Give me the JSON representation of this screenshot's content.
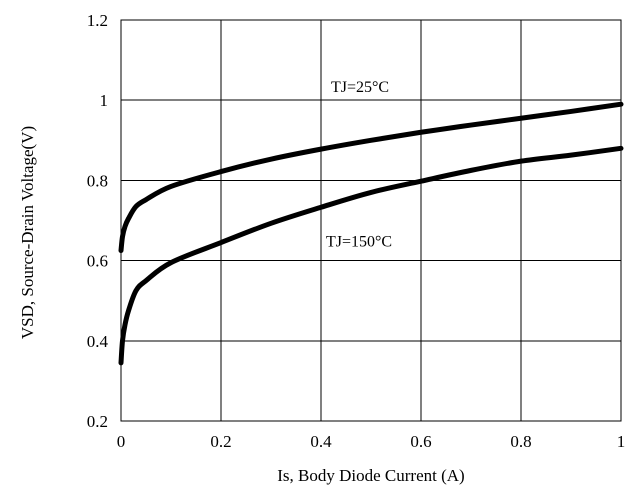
{
  "chart_data": {
    "type": "line",
    "title": "",
    "xlabel": "Is, Body Diode Current (A)",
    "ylabel": "VSD, Source-Drain Voltage(V)",
    "xlim": [
      0,
      1
    ],
    "ylim": [
      0.2,
      1.2
    ],
    "x_ticks": [
      "0",
      "0.2",
      "0.4",
      "0.6",
      "0.8",
      "1"
    ],
    "y_ticks": [
      "0.2",
      "0.4",
      "0.6",
      "0.8",
      "1",
      "1.2"
    ],
    "grid": true,
    "series": [
      {
        "name": "TJ=25°C",
        "x": [
          0.0,
          0.003,
          0.008,
          0.015,
          0.03,
          0.05,
          0.1,
          0.2,
          0.3,
          0.4,
          0.5,
          0.6,
          0.7,
          0.8,
          0.9,
          1.0
        ],
        "y": [
          0.625,
          0.66,
          0.685,
          0.705,
          0.735,
          0.752,
          0.785,
          0.822,
          0.853,
          0.878,
          0.9,
          0.92,
          0.938,
          0.955,
          0.972,
          0.99
        ]
      },
      {
        "name": "TJ=150°C",
        "x": [
          0.0,
          0.003,
          0.008,
          0.015,
          0.03,
          0.05,
          0.1,
          0.2,
          0.3,
          0.4,
          0.5,
          0.6,
          0.7,
          0.8,
          0.9,
          1.0
        ],
        "y": [
          0.345,
          0.4,
          0.44,
          0.475,
          0.525,
          0.55,
          0.595,
          0.645,
          0.693,
          0.733,
          0.77,
          0.798,
          0.825,
          0.848,
          0.863,
          0.88
        ]
      }
    ]
  }
}
